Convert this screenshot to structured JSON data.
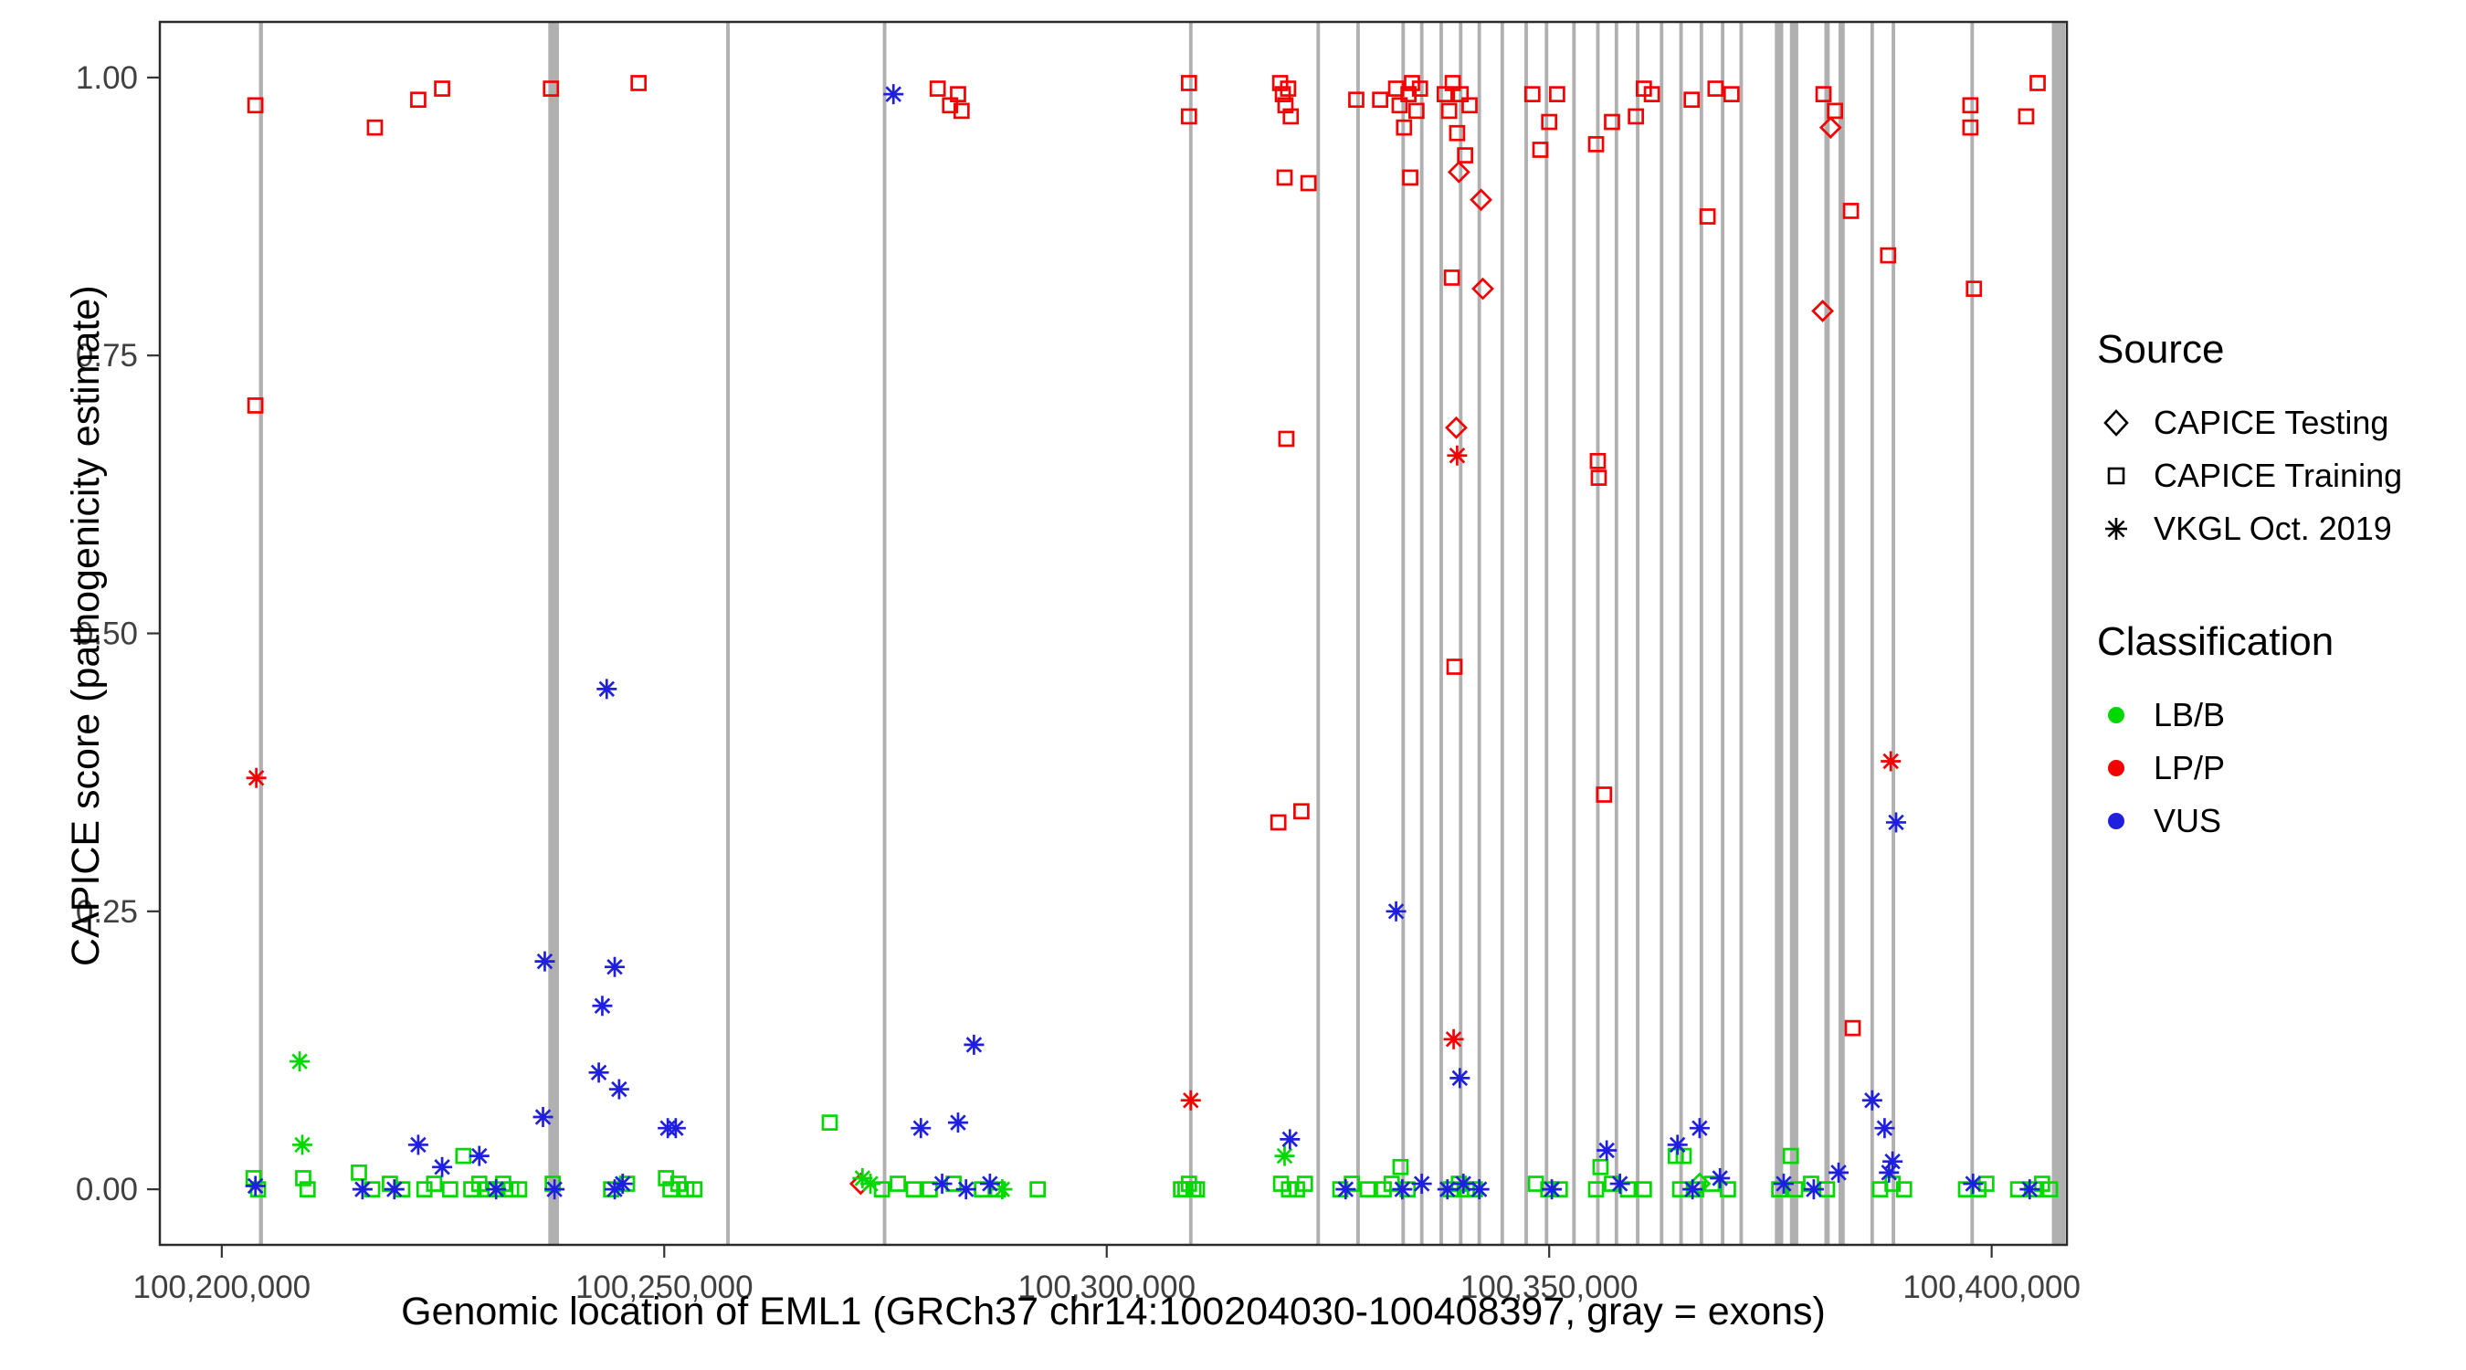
{
  "colors": {
    "lb": "#00d800",
    "lp": "#f50000",
    "vus": "#1f1fe0",
    "exon": "#b0b0b0",
    "axis_text": "#404040",
    "panel_border": "#2b2b2b",
    "legend_glyph": "#000000"
  },
  "x_axis": {
    "title": "Genomic location of EML1 (GRCh37 chr14:100204030-100408397, gray = exons)",
    "ticks": [
      "100,200,000",
      "100,250,000",
      "100,300,000",
      "100,350,000",
      "100,400,000"
    ],
    "tick_values": [
      100200000,
      100250000,
      100300000,
      100350000,
      100400000
    ]
  },
  "y_axis": {
    "title": "CAPICE score (pathogenicity estimate)",
    "ticks": [
      "0.00",
      "0.25",
      "0.50",
      "0.75",
      "1.00"
    ],
    "tick_values": [
      0,
      0.25,
      0.5,
      0.75,
      1
    ]
  },
  "legend": {
    "source": {
      "title": "Source",
      "items": [
        {
          "label": "CAPICE Testing",
          "marker": "diamond"
        },
        {
          "label": "CAPICE Training",
          "marker": "square"
        },
        {
          "label": "VKGL Oct. 2019",
          "marker": "asterisk"
        }
      ]
    },
    "classification": {
      "title": "Classification",
      "items": [
        {
          "label": "LB/B",
          "color": "#00d800"
        },
        {
          "label": "LP/P",
          "color": "#f50000"
        },
        {
          "label": "VUS",
          "color": "#1f1fe0"
        }
      ]
    }
  },
  "chart_data": {
    "type": "scatter",
    "title": "",
    "xlabel": "Genomic location of EML1 (GRCh37 chr14:100204030-100408397, gray = exons)",
    "ylabel": "CAPICE score (pathogenicity estimate)",
    "x_domain": [
      100193000,
      100408500
    ],
    "y_domain": [
      -0.05,
      1.05
    ],
    "grid": false,
    "legend_position": "right",
    "exons": [
      [
        100204200,
        450
      ],
      [
        100236900,
        1200
      ],
      [
        100257000,
        400
      ],
      [
        100274700,
        400
      ],
      [
        100309300,
        400
      ],
      [
        100323700,
        400
      ],
      [
        100328200,
        400
      ],
      [
        100333300,
        400
      ],
      [
        100335400,
        400
      ],
      [
        100337600,
        400
      ],
      [
        100339800,
        400
      ],
      [
        100341900,
        400
      ],
      [
        100344500,
        400
      ],
      [
        100347200,
        400
      ],
      [
        100349500,
        400
      ],
      [
        100352600,
        400
      ],
      [
        100355300,
        400
      ],
      [
        100357400,
        400
      ],
      [
        100359800,
        400
      ],
      [
        100362500,
        400
      ],
      [
        100364700,
        400
      ],
      [
        100367000,
        400
      ],
      [
        100369400,
        400
      ],
      [
        100371500,
        400
      ],
      [
        100375500,
        950
      ],
      [
        100377200,
        950
      ],
      [
        100381100,
        600
      ],
      [
        100382700,
        700
      ],
      [
        100386300,
        400
      ],
      [
        100388700,
        400
      ],
      [
        100397600,
        400
      ],
      [
        100406800,
        1500
      ]
    ],
    "series": [
      {
        "name": "CAPICE Training LP/P",
        "source": "CAPICE Training",
        "classification": "LP/P",
        "marker": "square",
        "color": "#f50000",
        "points": [
          [
            100203800,
            0.975
          ],
          [
            100203800,
            0.705
          ],
          [
            100217300,
            0.955
          ],
          [
            100222200,
            0.98
          ],
          [
            100224900,
            0.99
          ],
          [
            100237200,
            0.99
          ],
          [
            100247100,
            0.995
          ],
          [
            100280900,
            0.99
          ],
          [
            100282300,
            0.975
          ],
          [
            100283200,
            0.985
          ],
          [
            100283600,
            0.97
          ],
          [
            100309300,
            0.995
          ],
          [
            100309300,
            0.965
          ],
          [
            100319600,
            0.995
          ],
          [
            100319900,
            0.985
          ],
          [
            100320200,
            0.975
          ],
          [
            100320500,
            0.99
          ],
          [
            100320800,
            0.965
          ],
          [
            100320100,
            0.91
          ],
          [
            100322800,
            0.905
          ],
          [
            100320300,
            0.675
          ],
          [
            100319400,
            0.33
          ],
          [
            100322000,
            0.34
          ],
          [
            100328200,
            0.98
          ],
          [
            100330900,
            0.98
          ],
          [
            100332700,
            0.99
          ],
          [
            100333100,
            0.975
          ],
          [
            100333600,
            0.955
          ],
          [
            100334100,
            0.985
          ],
          [
            100334500,
            0.995
          ],
          [
            100335000,
            0.97
          ],
          [
            100335400,
            0.99
          ],
          [
            100334300,
            0.91
          ],
          [
            100338200,
            0.985
          ],
          [
            100338700,
            0.97
          ],
          [
            100339100,
            0.995
          ],
          [
            100339600,
            0.95
          ],
          [
            100340000,
            0.985
          ],
          [
            100340500,
            0.93
          ],
          [
            100341000,
            0.975
          ],
          [
            100339000,
            0.82
          ],
          [
            100339300,
            0.47
          ],
          [
            100348100,
            0.985
          ],
          [
            100349000,
            0.935
          ],
          [
            100350000,
            0.96
          ],
          [
            100350900,
            0.985
          ],
          [
            100355300,
            0.94
          ],
          [
            100357100,
            0.96
          ],
          [
            100355500,
            0.655
          ],
          [
            100355600,
            0.64
          ],
          [
            100356200,
            0.355
          ],
          [
            100359800,
            0.965
          ],
          [
            100360700,
            0.99
          ],
          [
            100361600,
            0.985
          ],
          [
            100366100,
            0.98
          ],
          [
            100367900,
            0.875
          ],
          [
            100368800,
            0.99
          ],
          [
            100370600,
            0.985
          ],
          [
            100381000,
            0.985
          ],
          [
            100382300,
            0.97
          ],
          [
            100384100,
            0.88
          ],
          [
            100384300,
            0.145
          ],
          [
            100388300,
            0.84
          ],
          [
            100397600,
            0.975
          ],
          [
            100397600,
            0.955
          ],
          [
            100398000,
            0.81
          ],
          [
            100403900,
            0.965
          ],
          [
            100405200,
            0.995
          ]
        ]
      },
      {
        "name": "CAPICE Testing LP/P",
        "source": "CAPICE Testing",
        "classification": "LP/P",
        "marker": "diamond",
        "color": "#f50000",
        "points": [
          [
            100339800,
            0.915
          ],
          [
            100342300,
            0.89
          ],
          [
            100342500,
            0.81
          ],
          [
            100339500,
            0.685
          ],
          [
            100381800,
            0.955
          ],
          [
            100380900,
            0.79
          ],
          [
            100272200,
            0.005
          ]
        ]
      },
      {
        "name": "CAPICE Training LB/B",
        "source": "CAPICE Training",
        "classification": "LB/B",
        "marker": "square",
        "color": "#00d800",
        "points": [
          [
            100203600,
            0.01
          ],
          [
            100204100,
            0.0
          ],
          [
            100209200,
            0.01
          ],
          [
            100209700,
            0.0
          ],
          [
            100215500,
            0.015
          ],
          [
            100217000,
            0.0
          ],
          [
            100219000,
            0.005
          ],
          [
            100220400,
            0.0
          ],
          [
            100222900,
            0.0
          ],
          [
            100224000,
            0.005
          ],
          [
            100225800,
            0.0
          ],
          [
            100227300,
            0.03
          ],
          [
            100228200,
            0.0
          ],
          [
            100229100,
            0.005
          ],
          [
            100230000,
            0.0
          ],
          [
            100230900,
            0.0
          ],
          [
            100231800,
            0.005
          ],
          [
            100232700,
            0.0
          ],
          [
            100233600,
            0.0
          ],
          [
            100237400,
            0.005
          ],
          [
            100244000,
            0.0
          ],
          [
            100245800,
            0.005
          ],
          [
            100250200,
            0.01
          ],
          [
            100250700,
            0.0
          ],
          [
            100251600,
            0.005
          ],
          [
            100252500,
            0.0
          ],
          [
            100253400,
            0.0
          ],
          [
            100268700,
            0.06
          ],
          [
            100274600,
            0.0
          ],
          [
            100276400,
            0.005
          ],
          [
            100278200,
            0.0
          ],
          [
            100280000,
            0.0
          ],
          [
            100282700,
            0.005
          ],
          [
            100285900,
            0.0
          ],
          [
            100287700,
            0.0
          ],
          [
            100292200,
            0.0
          ],
          [
            100308400,
            0.0
          ],
          [
            100308900,
            0.0
          ],
          [
            100309300,
            0.005
          ],
          [
            100309800,
            0.0
          ],
          [
            100310200,
            0.0
          ],
          [
            100319700,
            0.005
          ],
          [
            100320600,
            0.0
          ],
          [
            100321500,
            0.0
          ],
          [
            100322400,
            0.005
          ],
          [
            100326400,
            0.0
          ],
          [
            100327700,
            0.005
          ],
          [
            100329500,
            0.0
          ],
          [
            100333200,
            0.02
          ],
          [
            100331300,
            0.0
          ],
          [
            100332200,
            0.005
          ],
          [
            100334000,
            0.0
          ],
          [
            100338900,
            0.0
          ],
          [
            100339800,
            0.005
          ],
          [
            100340700,
            0.0
          ],
          [
            100341600,
            0.0
          ],
          [
            100348500,
            0.005
          ],
          [
            100349900,
            0.0
          ],
          [
            100351200,
            0.0
          ],
          [
            100355800,
            0.02
          ],
          [
            100355300,
            0.0
          ],
          [
            100357100,
            0.005
          ],
          [
            100358900,
            0.0
          ],
          [
            100360700,
            0.0
          ],
          [
            100364300,
            0.03
          ],
          [
            100365200,
            0.03
          ],
          [
            100364800,
            0.0
          ],
          [
            100366600,
            0.0
          ],
          [
            100368400,
            0.005
          ],
          [
            100370200,
            0.0
          ],
          [
            100376000,
            0.0
          ],
          [
            100377300,
            0.03
          ],
          [
            100377800,
            0.0
          ],
          [
            100379600,
            0.005
          ],
          [
            100381400,
            0.0
          ],
          [
            100387400,
            0.0
          ],
          [
            100388800,
            0.005
          ],
          [
            100390100,
            0.0
          ],
          [
            100397100,
            0.0
          ],
          [
            100398500,
            0.0
          ],
          [
            100399400,
            0.005
          ],
          [
            100403000,
            0.0
          ],
          [
            100404800,
            0.0
          ],
          [
            100405700,
            0.005
          ],
          [
            100406600,
            0.0
          ]
        ]
      },
      {
        "name": "CAPICE Testing LB/B",
        "source": "CAPICE Testing",
        "classification": "LB/B",
        "marker": "diamond",
        "color": "#00d800",
        "points": [
          [
            100367000,
            0.005
          ]
        ]
      },
      {
        "name": "VKGL LB/B",
        "source": "VKGL Oct. 2019",
        "classification": "LB/B",
        "marker": "asterisk",
        "color": "#00d800",
        "points": [
          [
            100208800,
            0.115
          ],
          [
            100209100,
            0.04
          ],
          [
            100272400,
            0.01
          ],
          [
            100273300,
            0.005
          ],
          [
            100288200,
            0.0
          ],
          [
            100320100,
            0.03
          ]
        ]
      },
      {
        "name": "VKGL LP/P",
        "source": "VKGL Oct. 2019",
        "classification": "LP/P",
        "marker": "asterisk",
        "color": "#f50000",
        "points": [
          [
            100203900,
            0.37
          ],
          [
            100309500,
            0.08
          ],
          [
            100339600,
            0.66
          ],
          [
            100339200,
            0.135
          ],
          [
            100388600,
            0.385
          ]
        ]
      },
      {
        "name": "VKGL VUS",
        "source": "VKGL Oct. 2019",
        "classification": "VUS",
        "marker": "asterisk",
        "color": "#1f1fe0",
        "points": [
          [
            100203800,
            0.003
          ],
          [
            100215900,
            0.0
          ],
          [
            100219500,
            0.0
          ],
          [
            100222200,
            0.04
          ],
          [
            100224900,
            0.02
          ],
          [
            100229100,
            0.03
          ],
          [
            100231000,
            0.0
          ],
          [
            100236500,
            0.205
          ],
          [
            100236300,
            0.065
          ],
          [
            100237600,
            0.0
          ],
          [
            100243500,
            0.45
          ],
          [
            100243000,
            0.165
          ],
          [
            100244400,
            0.2
          ],
          [
            100242600,
            0.105
          ],
          [
            100244900,
            0.09
          ],
          [
            100244400,
            0.0
          ],
          [
            100245300,
            0.005
          ],
          [
            100250400,
            0.055
          ],
          [
            100251300,
            0.055
          ],
          [
            100275900,
            0.985
          ],
          [
            100279000,
            0.055
          ],
          [
            100283200,
            0.06
          ],
          [
            100285000,
            0.13
          ],
          [
            100281400,
            0.005
          ],
          [
            100284100,
            0.0
          ],
          [
            100286800,
            0.005
          ],
          [
            100320700,
            0.045
          ],
          [
            100327000,
            0.0
          ],
          [
            100332700,
            0.25
          ],
          [
            100333400,
            0.0
          ],
          [
            100335600,
            0.005
          ],
          [
            100339900,
            0.1
          ],
          [
            100338500,
            0.0
          ],
          [
            100340300,
            0.005
          ],
          [
            100342100,
            0.0
          ],
          [
            100350300,
            0.0
          ],
          [
            100356500,
            0.035
          ],
          [
            100358000,
            0.005
          ],
          [
            100364500,
            0.04
          ],
          [
            100367000,
            0.055
          ],
          [
            100369300,
            0.01
          ],
          [
            100366200,
            0.0
          ],
          [
            100376500,
            0.005
          ],
          [
            100379900,
            0.0
          ],
          [
            100382700,
            0.015
          ],
          [
            100386500,
            0.08
          ],
          [
            100389200,
            0.33
          ],
          [
            100387900,
            0.055
          ],
          [
            100388800,
            0.025
          ],
          [
            100388400,
            0.015
          ],
          [
            100397900,
            0.005
          ],
          [
            100404300,
            0.0
          ]
        ]
      }
    ]
  }
}
